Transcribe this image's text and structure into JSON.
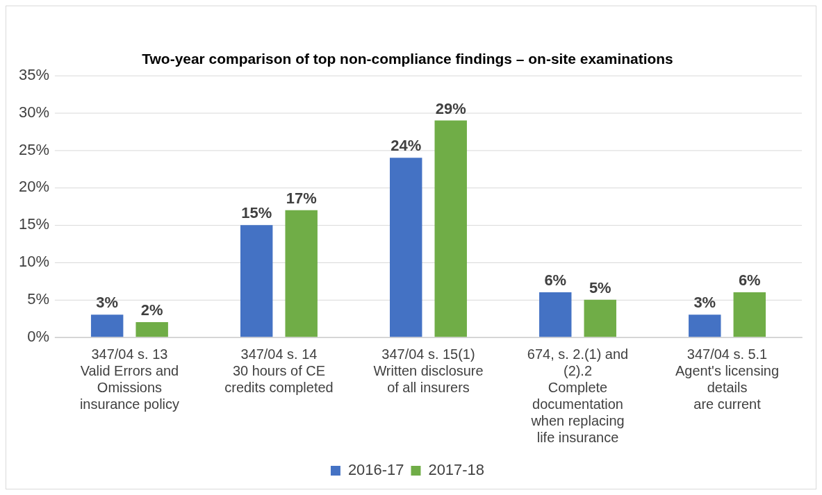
{
  "chart_data": {
    "type": "bar",
    "title": "Two-year comparison of top non-compliance findings – on-site examinations",
    "categories": [
      "347/04 s. 13\nValid Errors and\nOmissions\ninsurance policy",
      "347/04 s. 14\n30 hours of CE\ncredits completed",
      "347/04 s. 15(1)\nWritten disclosure\nof all insurers",
      "674, s. 2.(1) and\n(2).2\nComplete\ndocumentation\nwhen replacing\nlife insurance",
      "347/04 s. 5.1\nAgent's licensing\ndetails\nare current"
    ],
    "series": [
      {
        "name": "2016-17",
        "color": "#4472c4",
        "values": [
          3,
          15,
          24,
          6,
          3
        ],
        "value_labels": [
          "3%",
          "15%",
          "24%",
          "6%",
          "3%"
        ]
      },
      {
        "name": "2017-18",
        "color": "#70ad47",
        "values": [
          2,
          17,
          29,
          5,
          6
        ],
        "value_labels": [
          "2%",
          "17%",
          "29%",
          "5%",
          "6%"
        ]
      }
    ],
    "ylim": [
      0,
      35
    ],
    "yticks": [
      {
        "value": 0,
        "label": "0%"
      },
      {
        "value": 5,
        "label": "5%"
      },
      {
        "value": 10,
        "label": "10%"
      },
      {
        "value": 15,
        "label": "15%"
      },
      {
        "value": 20,
        "label": "20%"
      },
      {
        "value": 25,
        "label": "25%"
      },
      {
        "value": 30,
        "label": "30%"
      },
      {
        "value": 35,
        "label": "35%"
      }
    ],
    "grid": "y",
    "legend": "bottom"
  }
}
